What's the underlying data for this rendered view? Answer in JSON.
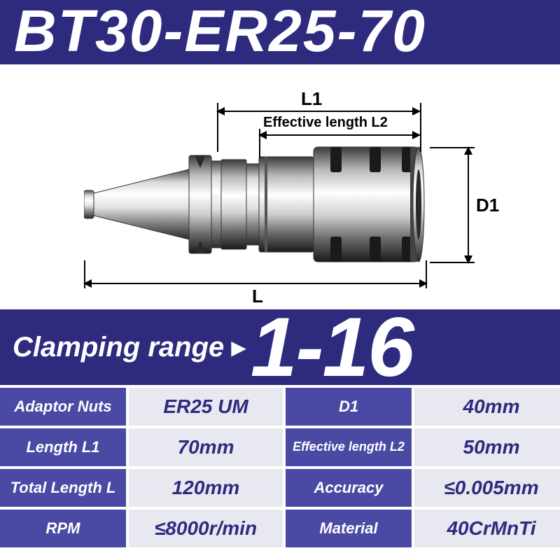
{
  "title": "BT30-ER25-70",
  "diagram": {
    "L1_label": "L1",
    "L2_label": "Effective length L2",
    "L_label": "L",
    "D1_label": "D1",
    "colors": {
      "metal_light": "#f5f5f5",
      "metal_mid": "#b8b8b8",
      "metal_dark": "#3a3a3a",
      "metal_highlight": "#ffffff",
      "line": "#000000"
    }
  },
  "clamping": {
    "label": "Clamping range",
    "value": "1-16"
  },
  "specs": {
    "rows": [
      {
        "label_l": "Adaptor Nuts",
        "value_l": "ER25 UM",
        "label_r": "D1",
        "value_r": "40mm"
      },
      {
        "label_l": "Length  L1",
        "value_l": "70mm",
        "label_r": "Effective length L2",
        "value_r": "50mm",
        "small_r": true
      },
      {
        "label_l": "Total Length  L",
        "value_l": "120mm",
        "label_r": "Accuracy",
        "value_r": "≤0.005mm"
      },
      {
        "label_l": "RPM",
        "value_l": "≤8000r/min",
        "label_r": "Material",
        "value_r": "40CrMnTi"
      }
    ]
  },
  "theme": {
    "primary": "#2e2b7f",
    "label_bg": "#4a4aa5",
    "value_bg": "#e8e8f0"
  }
}
